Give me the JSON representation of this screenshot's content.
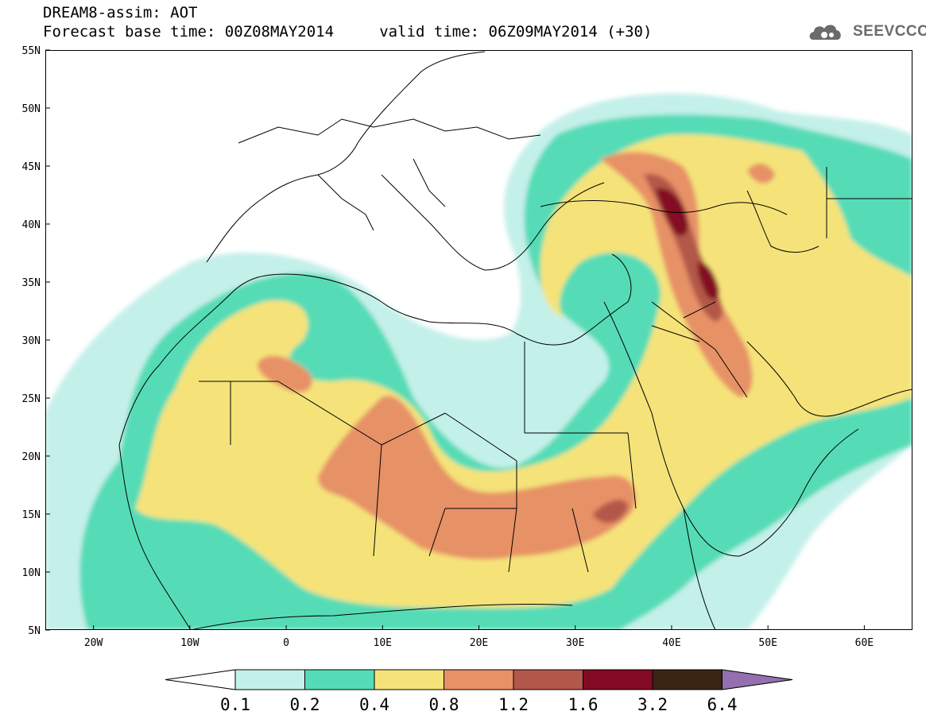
{
  "header": {
    "model_line": "DREAM8-assim: AOT",
    "forecast_line": "Forecast base time: 00Z08MAY2014     valid time: 06Z09MAY2014 (+30)"
  },
  "logo": {
    "text": "SEEVCCC",
    "icon": "cloud-icon"
  },
  "map": {
    "variable": "AOT",
    "lat_labels": [
      "55N",
      "50N",
      "45N",
      "40N",
      "35N",
      "30N",
      "25N",
      "20N",
      "15N",
      "10N",
      "5N"
    ],
    "lon_labels": [
      "20W",
      "10W",
      "0",
      "10E",
      "20E",
      "30E",
      "40E",
      "50E",
      "60E"
    ],
    "lat_range": [
      5,
      55
    ],
    "lon_range": [
      -25,
      65
    ],
    "colors": {
      "level_0_1": "#c4f0ea",
      "level_0_2": "#55dcb6",
      "level_0_4": "#f5e37a",
      "level_0_8": "#e79166",
      "level_1_2": "#b2584a",
      "level_1_6": "#830a24",
      "level_3_2": "#3a2414",
      "level_6_4": "#9470b0"
    }
  },
  "colorbar": {
    "levels": [
      "0.1",
      "0.2",
      "0.4",
      "0.8",
      "1.2",
      "1.6",
      "3.2",
      "6.4"
    ],
    "colors": [
      "#c4f0ea",
      "#55dcb6",
      "#f5e37a",
      "#e79166",
      "#b2584a",
      "#830a24",
      "#3a2414"
    ],
    "under_color": "#ffffff",
    "over_color": "#9470b0"
  }
}
